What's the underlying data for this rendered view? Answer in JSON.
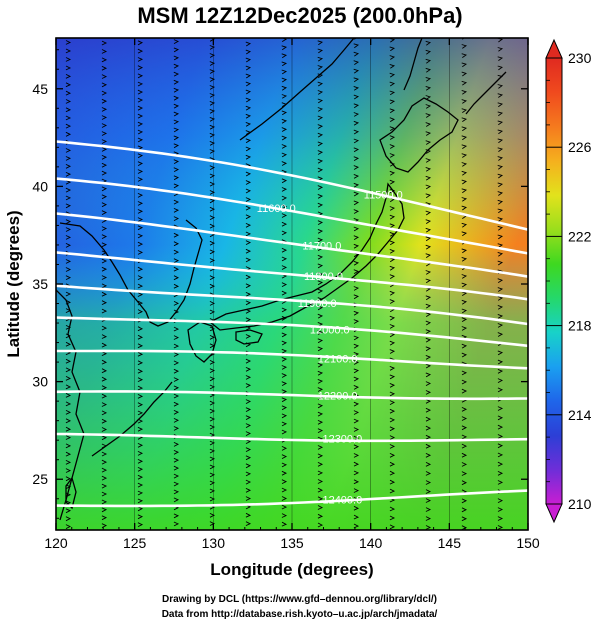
{
  "title": "MSM 12Z12Dec2025 (200.0hPa)",
  "x_axis": {
    "label": "Longitude (degrees)",
    "range": [
      120,
      150
    ],
    "ticks": [
      120,
      125,
      130,
      135,
      140,
      145,
      150
    ]
  },
  "y_axis": {
    "label": "Latitude  (degrees)",
    "range": [
      22.4,
      47.6
    ],
    "ticks": [
      25,
      30,
      35,
      40,
      45
    ]
  },
  "colorbar": {
    "range": [
      210,
      230
    ],
    "ticks": [
      210,
      214,
      218,
      222,
      226,
      230
    ],
    "colors": [
      "#c81ed2",
      "#6e2ed8",
      "#2c3fd6",
      "#1f66ea",
      "#1aa0f0",
      "#18d2c8",
      "#25d86a",
      "#3ed820",
      "#9ade1c",
      "#e2e21c",
      "#f5b01e",
      "#f57a1e",
      "#f04a1e",
      "#e02a20"
    ]
  },
  "contours": [
    {
      "label": "11500.0",
      "lat_west": 42.3,
      "lat_east": 37.9,
      "label_lon": 140.8
    },
    {
      "label": "11600.0",
      "lat_west": 40.3,
      "lat_east": 36.6,
      "label_lon": 134.0
    },
    {
      "label": "11700.0",
      "lat_west": 38.5,
      "lat_east": 35.3,
      "label_lon": 136.9
    },
    {
      "label": "11800.0",
      "lat_west": 36.6,
      "lat_east": 34.1,
      "label_lon": 137.0
    },
    {
      "label": "11900.0",
      "lat_west": 35.0,
      "lat_east": 32.9,
      "label_lon": 136.6
    },
    {
      "label": "12000.0",
      "lat_west": 33.4,
      "lat_east": 31.9,
      "label_lon": 137.4
    },
    {
      "label": "12100.0",
      "lat_west": 31.6,
      "lat_east": 30.8,
      "label_lon": 137.9
    },
    {
      "label": "12200.0",
      "lat_west": 29.4,
      "lat_east": 29.2,
      "label_lon": 137.9
    },
    {
      "label": "12300.0",
      "lat_west": 27.2,
      "lat_east": 27.0,
      "label_lon": 138.2
    },
    {
      "label": "12400.0",
      "lat_west": 23.6,
      "lat_east": 24.3,
      "label_lon": 138.2
    }
  ],
  "credits": [
    "Drawing by DCL (https://www.gfd–dennou.org/library/dcl/)",
    "Data from http://database.rish.kyoto–u.ac.jp/arch/jmadata/"
  ]
}
